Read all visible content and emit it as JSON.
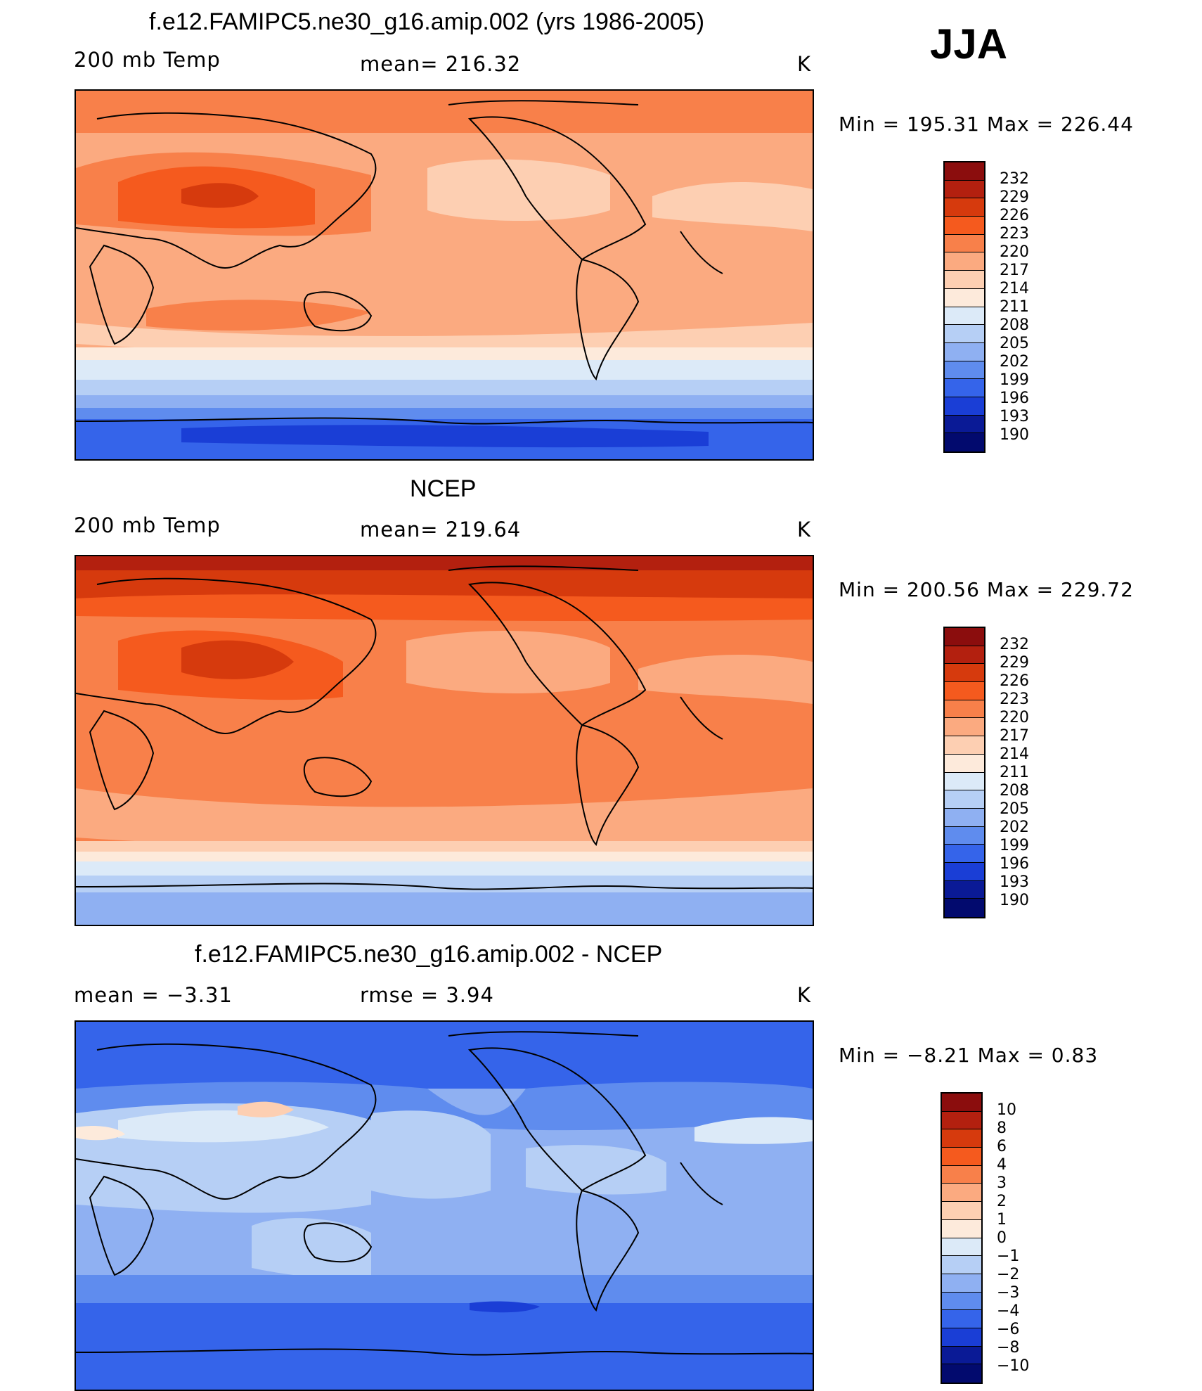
{
  "season": "JJA",
  "panels": [
    {
      "id": "model",
      "title": "f.e12.FAMIPC5.ne30_g16.amip.002 (yrs 1986-2005)",
      "left_label": "200 mb Temp",
      "center_label": "mean= 216.32",
      "units": "K",
      "minmax": "Min = 195.31 Max = 226.44",
      "colorbar_labels": [
        "232",
        "229",
        "226",
        "223",
        "220",
        "217",
        "214",
        "211",
        "208",
        "205",
        "202",
        "199",
        "196",
        "193",
        "190"
      ]
    },
    {
      "id": "obs",
      "title": "NCEP",
      "left_label": "200 mb Temp",
      "center_label": "mean= 219.64",
      "units": "K",
      "minmax": "Min = 200.56 Max = 229.72",
      "colorbar_labels": [
        "232",
        "229",
        "226",
        "223",
        "220",
        "217",
        "214",
        "211",
        "208",
        "205",
        "202",
        "199",
        "196",
        "193",
        "190"
      ]
    },
    {
      "id": "diff",
      "title": "f.e12.FAMIPC5.ne30_g16.amip.002 - NCEP",
      "left_label": "mean = −3.31",
      "center_label": "rmse = 3.94",
      "units": "K",
      "minmax": "Min = −8.21 Max = 0.83",
      "colorbar_labels": [
        "10",
        "8",
        "6",
        "4",
        "3",
        "2",
        "1",
        "0",
        "−1",
        "−2",
        "−3",
        "−4",
        "−6",
        "−8",
        "−10"
      ]
    }
  ],
  "colors": {
    "abs_scale": [
      "#8b0d0d",
      "#b3200f",
      "#d63a0d",
      "#f55a1e",
      "#f8804a",
      "#fbaa80",
      "#fdcfb2",
      "#fdeadb",
      "#dceaf8",
      "#b6cff5",
      "#8fb0f2",
      "#5f8cee",
      "#3564ea",
      "#1a3ed6",
      "#0a1a96",
      "#020a6e"
    ],
    "diff_scale": [
      "#8b0d0d",
      "#b3200f",
      "#d63a0d",
      "#f55a1e",
      "#f8804a",
      "#fbaa80",
      "#fdcfb2",
      "#fdeadb",
      "#dceaf8",
      "#b6cff5",
      "#8fb0f2",
      "#5f8cee",
      "#3564ea",
      "#1a3ed6",
      "#0a1a96",
      "#020a6e"
    ]
  }
}
